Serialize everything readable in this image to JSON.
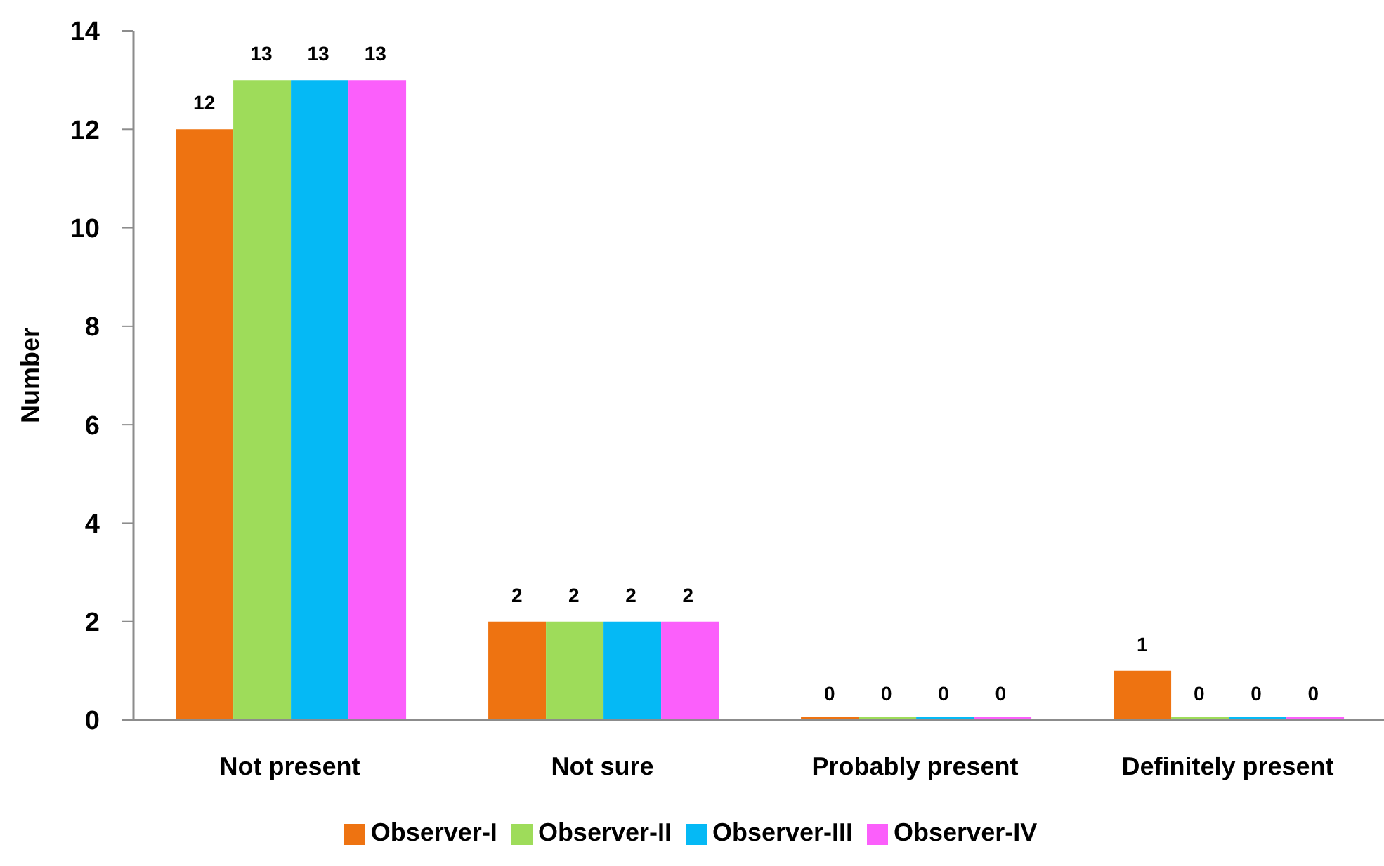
{
  "chart_data": {
    "type": "bar",
    "ylabel": "Number",
    "categories": [
      "Not present",
      "Not sure",
      "Probably present",
      "Definitely present"
    ],
    "series": [
      {
        "name": "Observer-I",
        "color": "#ee7311",
        "values": [
          12,
          2,
          0,
          1
        ]
      },
      {
        "name": "Observer-II",
        "color": "#9edc5a",
        "values": [
          13,
          2,
          0,
          0
        ]
      },
      {
        "name": "Observer-III",
        "color": "#05b9f5",
        "values": [
          13,
          2,
          0,
          0
        ]
      },
      {
        "name": "Observer-IV",
        "color": "#fb5ffb",
        "values": [
          13,
          2,
          0,
          0
        ]
      }
    ],
    "ylim": [
      0,
      14
    ],
    "yticks": [
      0,
      2,
      4,
      6,
      8,
      10,
      12,
      14
    ],
    "legend": "bottom",
    "data_labels": true
  }
}
